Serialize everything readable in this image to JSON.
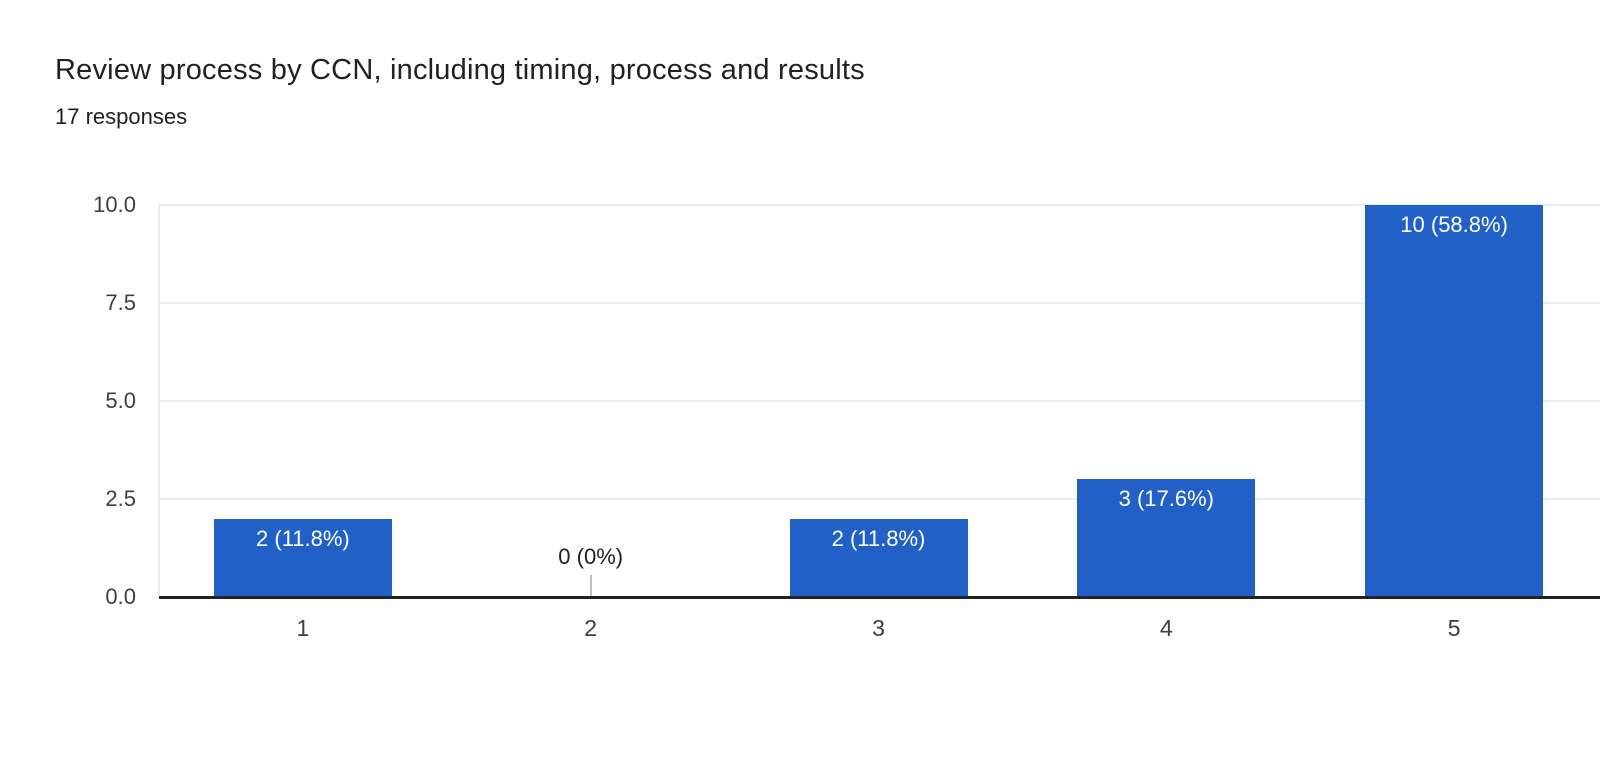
{
  "header": {
    "title": "Review process by CCN, including timing, process and results",
    "subtitle": "17 responses"
  },
  "chart_data": {
    "type": "bar",
    "title": "Review process by CCN, including timing, process and results",
    "subtitle": "17 responses",
    "total_responses": 17,
    "categories": [
      "1",
      "2",
      "3",
      "4",
      "5"
    ],
    "values": [
      2,
      0,
      2,
      3,
      10
    ],
    "percentages": [
      11.8,
      0,
      11.8,
      17.6,
      58.8
    ],
    "bar_labels": [
      "2 (11.8%)",
      "0 (0%)",
      "2 (11.8%)",
      "3 (17.6%)",
      "10 (58.8%)"
    ],
    "xlabel": "",
    "ylabel": "",
    "ylim": [
      0,
      10
    ],
    "y_ticks": [
      0,
      2.5,
      5,
      7.5,
      10
    ],
    "y_tick_labels": [
      "0.0",
      "2.5",
      "5.0",
      "7.5",
      "10.0"
    ],
    "grid": true,
    "legend_position": "none"
  },
  "colors": {
    "background": "#ffffff",
    "bar": "#2161c7",
    "bar_label_inside": "#ffffff",
    "zero_label": "#212121",
    "title": "#202124",
    "axis_labels": "#3c4043",
    "gridline": "#ececec",
    "axis_line": "#212121",
    "zero_stub": "#bdbdbd"
  }
}
